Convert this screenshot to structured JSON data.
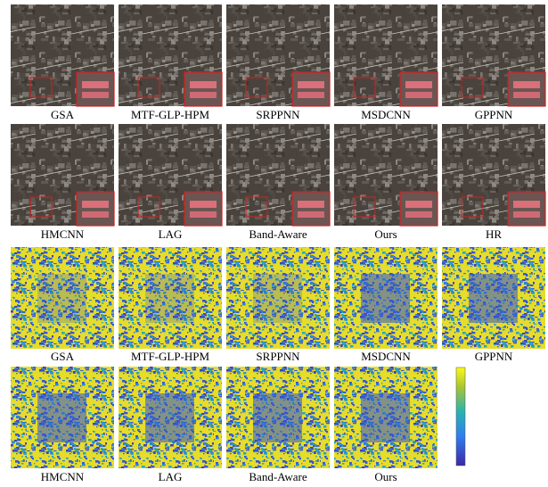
{
  "figure": {
    "rows": [
      {
        "kind": "rgb",
        "labels": [
          "GSA",
          "MTF-GLP-HPM",
          "SRPPNN",
          "MSDCNN",
          "GPPNN"
        ]
      },
      {
        "kind": "rgb",
        "labels": [
          "HMCNN",
          "LAG",
          "Band-Aware",
          "Ours",
          "HR"
        ]
      },
      {
        "kind": "error",
        "labels": [
          "GSA",
          "MTF-GLP-HPM",
          "SRPPNN",
          "MSDCNN",
          "GPPNN"
        ]
      },
      {
        "kind": "error",
        "labels": [
          "HMCNN",
          "LAG",
          "Band-Aware",
          "Ours"
        ]
      }
    ]
  }
}
